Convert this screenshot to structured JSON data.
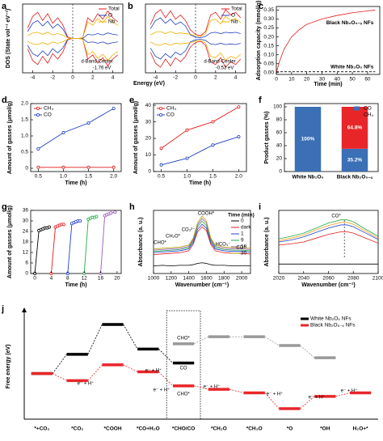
{
  "chart_data": [
    {
      "type": "line",
      "label": "a",
      "ylabel": "DOS (State vol⁻¹ eV⁻¹)",
      "x": [
        -4.5,
        -4,
        -3.5,
        -3,
        -2.5,
        -2,
        -1.5,
        -1,
        -0.5,
        0,
        0.5,
        1,
        1.5,
        2,
        2.5,
        3,
        3.5,
        4,
        4.5
      ],
      "xlim": [
        -5,
        5
      ],
      "xticks": [
        -4,
        -2,
        0,
        2,
        4
      ],
      "ylim": [
        -5,
        5
      ],
      "legend": "upper right",
      "annotations": [
        "d-Band-Center",
        "-1.76 eV"
      ],
      "series": [
        {
          "name": "Total",
          "color": "#e41a1c",
          "values": [
            1.5,
            3.2,
            3.8,
            2.6,
            3.6,
            2.2,
            3.0,
            2.0,
            0.2,
            0,
            0,
            0.1,
            3.0,
            2.4,
            3.6,
            2.8,
            4.0,
            3.0,
            2.4
          ],
          "down": [
            -1.5,
            -3.2,
            -3.8,
            -2.6,
            -3.6,
            -2.2,
            -3.0,
            -2.0,
            -0.2,
            0,
            0,
            -0.1,
            -3.0,
            -2.4,
            -3.6,
            -2.8,
            -4.0,
            -3.0,
            -2.4
          ]
        },
        {
          "name": "O",
          "color": "#1f3fbf",
          "values": [
            1.0,
            2.2,
            2.6,
            1.8,
            2.5,
            1.5,
            2.1,
            1.4,
            0.1,
            0,
            0,
            0,
            0.6,
            0.5,
            0.7,
            0.5,
            0.8,
            0.6,
            0.5
          ],
          "down": [
            -1.0,
            -2.2,
            -2.6,
            -1.8,
            -2.5,
            -1.5,
            -2.1,
            -1.4,
            -0.1,
            0,
            0,
            0,
            -0.6,
            -0.5,
            -0.7,
            -0.5,
            -0.8,
            -0.6,
            -0.5
          ]
        },
        {
          "name": "Nb",
          "color": "#f0b000",
          "values": [
            0.4,
            0.8,
            0.9,
            0.6,
            0.9,
            0.5,
            0.7,
            0.5,
            0.1,
            0,
            0,
            0.1,
            2.4,
            1.9,
            2.9,
            2.3,
            3.2,
            2.4,
            1.9
          ],
          "down": [
            -0.4,
            -0.8,
            -0.9,
            -0.6,
            -0.9,
            -0.5,
            -0.7,
            -0.5,
            -0.1,
            0,
            0,
            -0.1,
            -2.4,
            -1.9,
            -2.9,
            -2.3,
            -3.2,
            -2.4,
            -1.9
          ]
        }
      ]
    },
    {
      "type": "line",
      "label": "b",
      "xlabel": "Energy (eV)",
      "x": [
        -4.5,
        -4,
        -3.5,
        -3,
        -2.5,
        -2,
        -1.5,
        -1,
        -0.5,
        0,
        0.5,
        1,
        1.5,
        2,
        2.5,
        3,
        3.5,
        4,
        4.5
      ],
      "xlim": [
        -5,
        5
      ],
      "xticks": [
        -4,
        -2,
        0,
        2,
        4
      ],
      "ylim": [
        -5,
        5
      ],
      "legend": "upper right",
      "annotations": [
        "d-Band-Center",
        "-0.53 eV"
      ],
      "series": [
        {
          "name": "Total",
          "color": "#e41a1c",
          "values": [
            2.0,
            3.6,
            4.2,
            3.0,
            4.0,
            2.8,
            3.4,
            2.6,
            1.2,
            0.6,
            0.4,
            1.0,
            3.4,
            3.8,
            2.8,
            4.2,
            3.4,
            3.8,
            3.0
          ],
          "down": [
            -2.0,
            -3.6,
            -4.2,
            -3.0,
            -4.0,
            -2.8,
            -3.4,
            -2.6,
            -1.2,
            -0.6,
            -0.4,
            -1.0,
            -3.4,
            -3.8,
            -2.8,
            -4.2,
            -3.4,
            -3.8,
            -3.0
          ]
        },
        {
          "name": "O",
          "color": "#1f3fbf",
          "values": [
            1.4,
            2.6,
            3.0,
            2.2,
            2.8,
            2.0,
            2.4,
            1.8,
            0.5,
            0.2,
            0.1,
            0.3,
            0.8,
            0.9,
            0.7,
            0.9,
            0.8,
            0.9,
            0.7
          ],
          "down": [
            -1.4,
            -2.6,
            -3.0,
            -2.2,
            -2.8,
            -2.0,
            -2.4,
            -1.8,
            -0.5,
            -0.2,
            -0.1,
            -0.3,
            -0.8,
            -0.9,
            -0.7,
            -0.9,
            -0.8,
            -0.9,
            -0.7
          ]
        },
        {
          "name": "Nb",
          "color": "#f0b000",
          "values": [
            0.5,
            0.9,
            1.0,
            0.7,
            1.0,
            0.7,
            0.8,
            0.7,
            0.6,
            0.4,
            0.3,
            0.7,
            2.6,
            2.8,
            2.1,
            3.2,
            2.6,
            2.9,
            2.3
          ],
          "down": [
            -0.5,
            -0.9,
            -1.0,
            -0.7,
            -1.0,
            -0.7,
            -0.8,
            -0.7,
            -0.6,
            -0.4,
            -0.3,
            -0.7,
            -2.6,
            -2.8,
            -2.1,
            -3.2,
            -2.6,
            -2.9,
            -2.3
          ]
        }
      ]
    },
    {
      "type": "line",
      "label": "c",
      "xlabel": "Time (min)",
      "ylabel": "Adsorption capacity (mmol/g)",
      "x": [
        0,
        2,
        5,
        10,
        15,
        20,
        30,
        40,
        50,
        60,
        65
      ],
      "xlim": [
        0,
        68
      ],
      "xticks": [
        0,
        10,
        20,
        30,
        40,
        50,
        60
      ],
      "ylim": [
        -0.01,
        0.37
      ],
      "yticks": [
        {
          "value": 0,
          "label": "0.00"
        },
        {
          "value": 0.05,
          "label": "0.05"
        },
        {
          "value": 0.1,
          "label": "0.10"
        },
        {
          "value": 0.15,
          "label": "0.15"
        },
        {
          "value": 0.2,
          "label": "0.20"
        },
        {
          "value": 0.25,
          "label": "0.25"
        },
        {
          "value": 0.3,
          "label": "0.30"
        },
        {
          "value": 0.35,
          "label": "0.35"
        }
      ],
      "legend": "inline",
      "series": [
        {
          "name": "Black Nb₂O₅₋ₓ NFs",
          "color": "#e41a1c",
          "values": [
            0,
            0.06,
            0.13,
            0.2,
            0.24,
            0.27,
            0.3,
            0.32,
            0.335,
            0.345,
            0.35
          ]
        },
        {
          "name": "White Nb₂O₅ NFs",
          "color": "#000000",
          "dash": true,
          "values": [
            0.005,
            0.005,
            0.005,
            0.005,
            0.005,
            0.005,
            0.005,
            0.005,
            0.005,
            0.005,
            0.005
          ]
        }
      ]
    },
    {
      "type": "line",
      "label": "d",
      "xlabel": "Time (h)",
      "ylabel": "Amount of gasses (μmol/g)",
      "x": [
        0.5,
        1,
        1.5,
        2
      ],
      "xlim": [
        0.35,
        2.15
      ],
      "xticks": [
        0.5,
        {
          "value": 1,
          "label": "1.0"
        },
        1.5,
        {
          "value": 2,
          "label": "2.0"
        }
      ],
      "ylim": [
        -0.1,
        2.0
      ],
      "yticks": [
        0,
        0.5,
        {
          "value": 1,
          "label": "1.0"
        },
        1.5,
        {
          "value": 2,
          "label": "2.0"
        }
      ],
      "markers": true,
      "legend": "upper left",
      "series": [
        {
          "name": "CH₄",
          "color": "#e41a1c",
          "values": [
            0.03,
            0.03,
            0.03,
            0.03
          ]
        },
        {
          "name": "CO",
          "color": "#1f3fbf",
          "values": [
            0.6,
            1.1,
            1.4,
            1.85
          ]
        }
      ]
    },
    {
      "type": "line",
      "label": "e",
      "xlabel": "Time (h)",
      "ylabel": "Amount of gasses (μmol/g)",
      "x": [
        0.5,
        1,
        1.5,
        2
      ],
      "xlim": [
        0.35,
        2.15
      ],
      "xticks": [
        0.5,
        {
          "value": 1,
          "label": "1.0"
        },
        1.5,
        {
          "value": 2,
          "label": "2.0"
        }
      ],
      "ylim": [
        0,
        41
      ],
      "yticks": [
        0,
        10,
        20,
        30,
        40
      ],
      "markers": true,
      "legend": "upper left",
      "series": [
        {
          "name": "CH₄",
          "color": "#e41a1c",
          "values": [
            14,
            25,
            30,
            39
          ]
        },
        {
          "name": "CO",
          "color": "#1f3fbf",
          "values": [
            4,
            8,
            16,
            21
          ]
        }
      ]
    },
    {
      "type": "bar",
      "label": "f",
      "ylabel": "Product gasses (%)",
      "categories": [
        "White Nb₂O₅",
        "Black Nb₂O₅₋ₓ"
      ],
      "ylim": [
        0,
        105
      ],
      "yticks": [
        0,
        20,
        40,
        60,
        80,
        100
      ],
      "legend": "upper right",
      "series": [
        {
          "name": "CO",
          "color": "#3b6fb6",
          "values": [
            100,
            35.2
          ],
          "value_labels": [
            "100%",
            "35.2%"
          ]
        },
        {
          "name": "CH₄",
          "color": "#e8262a",
          "values": [
            0,
            64.8
          ],
          "value_labels": [
            null,
            "64.8%"
          ]
        }
      ]
    },
    {
      "type": "line",
      "label": "g",
      "xlabel": "Time (h)",
      "ylabel": "Amount of gasses (μmol/g)",
      "xlim": [
        -1,
        21
      ],
      "xticks": [
        0,
        4,
        8,
        12,
        16,
        20
      ],
      "ylim": [
        0,
        36
      ],
      "yticks": [
        0,
        6,
        12,
        18,
        24,
        30,
        36
      ],
      "markers": true,
      "series": [
        {
          "color": "#000000",
          "x": [
            0,
            1,
            1.5,
            2,
            2.5,
            3,
            3.5
          ],
          "values": [
            0,
            24.5,
            25,
            25.5,
            26,
            26,
            26.5
          ]
        },
        {
          "color": "#e41a1c",
          "x": [
            4,
            5,
            5.5,
            6,
            6.5,
            7
          ],
          "values": [
            0,
            26.5,
            27,
            27.5,
            28,
            28
          ]
        },
        {
          "color": "#2040d0",
          "x": [
            8,
            9,
            9.5,
            10,
            10.5,
            11
          ],
          "values": [
            0,
            28.5,
            29,
            29.5,
            30,
            30
          ]
        },
        {
          "color": "#22aa44",
          "x": [
            12,
            13,
            13.5,
            14,
            14.5,
            15
          ],
          "values": [
            0,
            31,
            31.5,
            32,
            32,
            32.5
          ]
        },
        {
          "color": "#9b59b6",
          "x": [
            16,
            17,
            17.5,
            18,
            18.5,
            19.5
          ],
          "values": [
            0,
            33,
            33.5,
            34,
            34.5,
            35
          ]
        }
      ]
    },
    {
      "type": "line",
      "label": "h",
      "xlabel": "Wavenumber (cm⁻¹)",
      "ylabel": "Absorbance (a. u.)",
      "x": [
        1000,
        1100,
        1200,
        1300,
        1400,
        1450,
        1500,
        1550,
        1600,
        1650,
        1700,
        1800,
        1900,
        2000,
        2100
      ],
      "xlim": [
        1000,
        2100
      ],
      "xticks": [
        1000,
        1200,
        1400,
        1600,
        1800,
        2000
      ],
      "ylim": [
        0,
        10
      ],
      "legend": "upper right",
      "legend_title": "Time (min)",
      "annotations": [
        "CHO*",
        "CH₂O*",
        "CO₃²⁻",
        "COOH*",
        "HCO₃⁻",
        "CO*"
      ],
      "series": [
        {
          "name": "0",
          "color": "#000000",
          "values": [
            1.2,
            1.3,
            1.2,
            1.3,
            1.3,
            1.4,
            1.6,
            1.7,
            1.6,
            1.4,
            1.3,
            1.3,
            1.2,
            1.2,
            1.2
          ]
        },
        {
          "name": "dark",
          "color": "#e41a1c",
          "values": [
            3.0,
            3.1,
            3.2,
            3.3,
            3.6,
            4.6,
            6.6,
            7.4,
            6.8,
            4.6,
            3.6,
            3.3,
            3.2,
            3.2,
            3.1
          ]
        },
        {
          "name": "1",
          "color": "#2040d0",
          "values": [
            3.3,
            3.4,
            3.5,
            3.6,
            3.9,
            4.9,
            7.0,
            7.8,
            7.2,
            4.9,
            3.9,
            3.6,
            3.5,
            3.5,
            3.4
          ]
        },
        {
          "name": "9",
          "color": "#22aa44",
          "values": [
            3.5,
            3.6,
            3.7,
            3.8,
            4.1,
            5.2,
            7.4,
            8.3,
            7.6,
            5.2,
            4.1,
            3.8,
            3.7,
            3.7,
            3.6
          ]
        },
        {
          "name": "18",
          "color": "#9b59b6",
          "values": [
            3.7,
            3.8,
            3.9,
            4.0,
            4.3,
            5.4,
            7.7,
            8.7,
            8.0,
            5.4,
            4.3,
            4.0,
            3.9,
            3.9,
            3.8
          ]
        },
        {
          "name": "30",
          "color": "#b5a000",
          "values": [
            3.9,
            4.0,
            4.1,
            4.2,
            4.5,
            5.6,
            8.0,
            9.1,
            8.3,
            5.6,
            4.5,
            4.2,
            4.1,
            4.1,
            4.0
          ]
        }
      ]
    },
    {
      "type": "line",
      "label": "i",
      "xlabel": "Wavenumber (cm⁻¹)",
      "ylabel": "Absorbance (a. u.)",
      "x": [
        2020,
        2030,
        2040,
        2050,
        2060,
        2070,
        2075,
        2080,
        2090,
        2100
      ],
      "xlim": [
        2020,
        2100
      ],
      "xticks": [
        2020,
        2040,
        2060,
        2080,
        2100
      ],
      "ylim": [
        0,
        10
      ],
      "annotations": [
        "CO*"
      ],
      "series": [
        {
          "color": "#000000",
          "values": [
            1.5,
            1.5,
            1.5,
            1.5,
            1.5,
            1.5,
            1.5,
            1.5,
            1.5,
            1.5
          ]
        },
        {
          "color": "#e41a1c",
          "values": [
            4.5,
            4.7,
            5,
            5.6,
            6.2,
            6.6,
            6.6,
            6.4,
            5.6,
            4.8
          ]
        },
        {
          "color": "#2040d0",
          "values": [
            5,
            5.3,
            5.8,
            6.5,
            7.2,
            7.7,
            7.7,
            7.4,
            6.4,
            5.4
          ]
        },
        {
          "color": "#f0a020",
          "values": [
            5.2,
            5.6,
            6.1,
            6.9,
            7.6,
            8.1,
            8.1,
            7.8,
            6.7,
            5.6
          ]
        },
        {
          "color": "#22aa44",
          "values": [
            5.5,
            5.9,
            6.4,
            7.2,
            8,
            8.5,
            8.5,
            8.2,
            7,
            5.9
          ]
        }
      ]
    },
    {
      "type": "energy",
      "label": "j",
      "ylabel": "Free energy (eV)",
      "categories": [
        "*+CO₂",
        "*CO₂",
        "*COOH",
        "*CO+H₂O",
        "*CHO/CO",
        "*CH₂O",
        "*CH₃O",
        "*O",
        "*OH",
        "H₂O+*"
      ],
      "ylim": [
        -2.6,
        3.4
      ],
      "legend": "upper right",
      "annotations": [
        "CO",
        "CHO*",
        "CHO*",
        "e⁻ + H⁺",
        "e⁻ + H⁺",
        "e⁻ + H⁺",
        "e⁻ + H⁺",
        "e⁻ + H⁺",
        "e⁻ + H⁺",
        "e⁻ + H⁺"
      ],
      "series": [
        {
          "name": "White Nb₂O₅ NFs",
          "color": "#000000",
          "values": [
            0,
            1.1,
            2.8,
            1.4,
            0.6,
            null,
            null,
            null,
            null,
            null
          ]
        },
        {
          "color": "#999999",
          "values": [
            null,
            null,
            null,
            null,
            1.7,
            2.1,
            2.1,
            1.6,
            0.9,
            null
          ]
        },
        {
          "name": "Black Nb₂O₅₋ₓ NFs",
          "color": "#e8262a",
          "values": [
            0,
            -0.4,
            0.5,
            0.1,
            -0.7,
            -0.9,
            -1.1,
            -2.0,
            -1.3,
            -1.1
          ]
        }
      ]
    }
  ]
}
